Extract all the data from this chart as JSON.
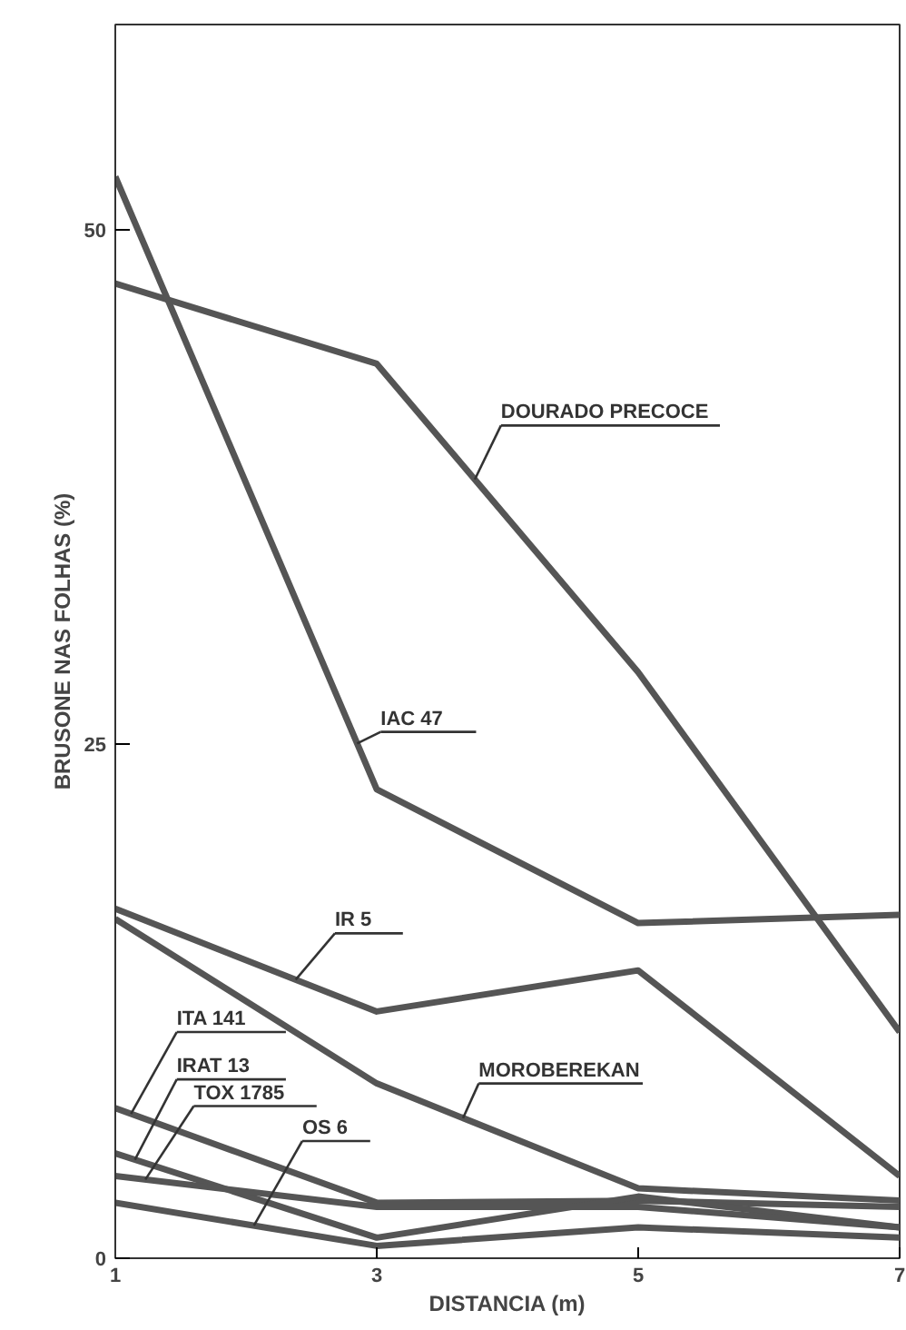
{
  "chart_data": {
    "type": "line",
    "xlabel": "DISTANCIA (m)",
    "ylabel": "BRUSONE NAS FOLHAS (%)",
    "x": [
      1,
      3,
      5,
      7
    ],
    "xlim": [
      1,
      7
    ],
    "xticks": [
      1,
      3,
      5,
      7
    ],
    "ylim": [
      0,
      60
    ],
    "yticks": [
      0,
      25,
      50
    ],
    "grid": false,
    "marker": "none",
    "line_style": "solid",
    "series": [
      {
        "name": "DOURADO PRECOCE",
        "color": "#555555",
        "values": [
          47.4,
          43.5,
          28.5,
          11.0
        ]
      },
      {
        "name": "IAC 47",
        "color": "#555555",
        "values": [
          52.6,
          22.8,
          16.3,
          16.7
        ]
      },
      {
        "name": "IR 5",
        "color": "#555555",
        "values": [
          17.0,
          12.0,
          14.0,
          4.0
        ]
      },
      {
        "name": "MOROBEREKAN",
        "color": "#555555",
        "values": [
          16.5,
          8.5,
          3.4,
          2.8
        ]
      },
      {
        "name": "ITA 141",
        "color": "#555555",
        "values": [
          7.3,
          2.7,
          2.8,
          2.5
        ]
      },
      {
        "name": "IRAT 13",
        "color": "#555555",
        "values": [
          5.1,
          1.0,
          3.0,
          1.5
        ]
      },
      {
        "name": "TOX 1785",
        "color": "#555555",
        "values": [
          4.0,
          2.5,
          2.5,
          1.5
        ]
      },
      {
        "name": "OS 6",
        "color": "#555555",
        "values": [
          2.7,
          0.6,
          1.5,
          1.0
        ]
      }
    ]
  }
}
